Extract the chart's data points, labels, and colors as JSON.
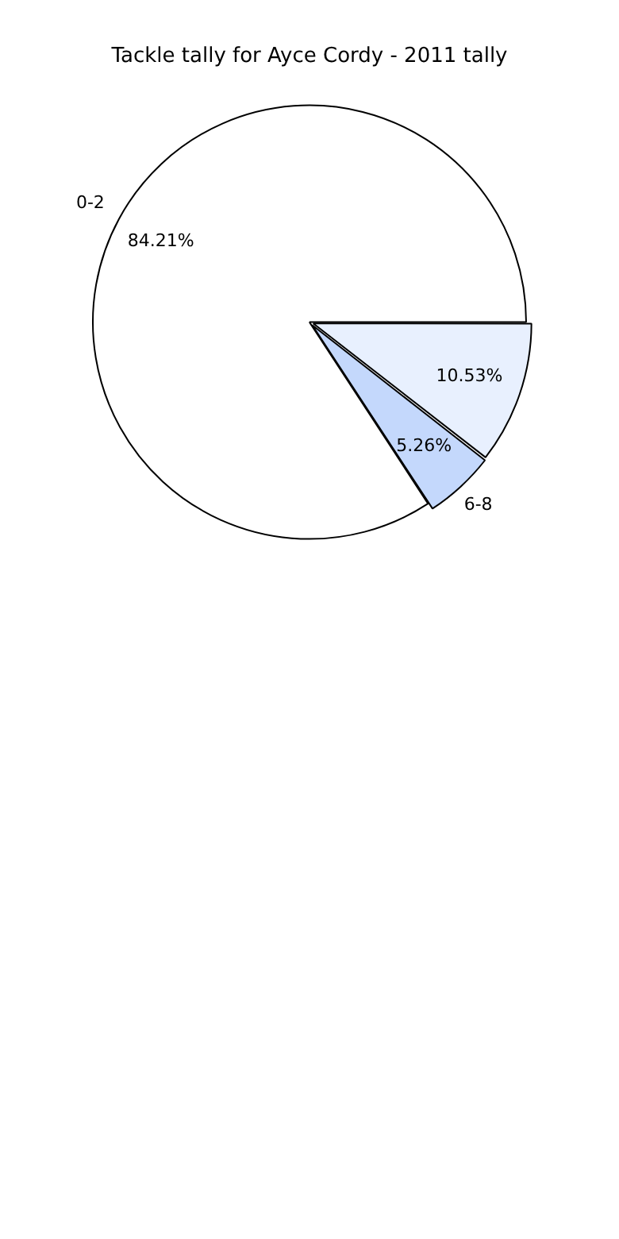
{
  "chart_data": {
    "type": "pie",
    "title": "Tackle tally for Ayce Cordy - 2011 tally",
    "categories": [
      "0-2",
      null,
      "6-8"
    ],
    "values": [
      84.21,
      10.53,
      5.26
    ],
    "colors": [
      "#ffffff",
      "#e8f0fe",
      "#c4d8fc"
    ],
    "value_labels": [
      "84.21%",
      "10.53%",
      "5.26%"
    ],
    "legend": false
  }
}
